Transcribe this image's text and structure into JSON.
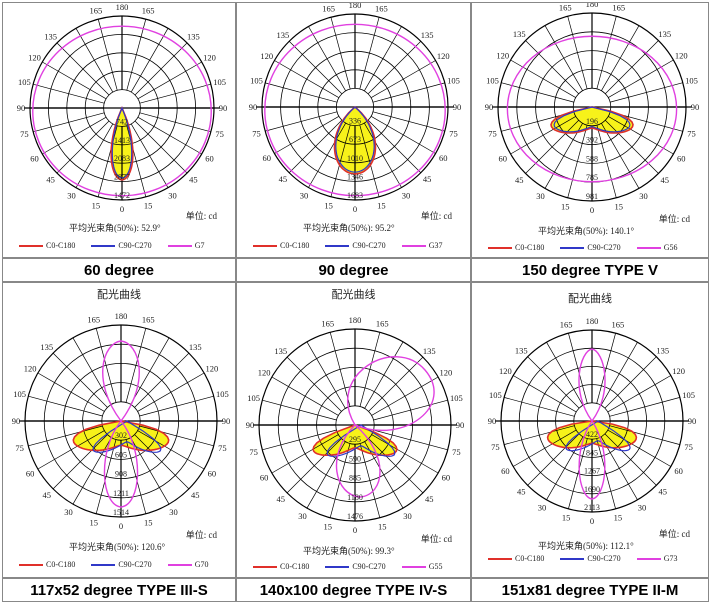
{
  "colors": {
    "c0": "#e0302a",
    "c90": "#3038c8",
    "g": "#e040e0",
    "fill": "#f7f21a",
    "grid": "#000000"
  },
  "unit_label": "单位: cd",
  "panels": [
    {
      "caption": "60 degree",
      "title": "",
      "beam_label": "平均光束角(50%): 52.9°",
      "legend": [
        "C0-C180",
        "C90-C270",
        "G7"
      ],
      "chart_data": {
        "type": "polar",
        "angle_labels_left": [
          "180",
          "165",
          "135",
          "120",
          "105",
          "90",
          "75",
          "60",
          "45",
          "30",
          "15",
          "0"
        ],
        "angle_labels_right": [
          "165",
          "135",
          "120",
          "105",
          "90",
          "75",
          "60",
          "45",
          "30",
          "15"
        ],
        "radial_labels": [
          "742",
          "1413",
          "2083",
          "2877",
          "1472"
        ],
        "series": [
          {
            "name": "C0-C180",
            "peak_deg": 0,
            "spread_deg": 26
          },
          {
            "name": "C90-C270",
            "peak_deg": 0,
            "spread_deg": 26
          },
          {
            "name": "G7",
            "shape": "circle"
          }
        ]
      }
    },
    {
      "caption": "90 degree",
      "title": "",
      "beam_label": "平均光束角(50%): 95.2°",
      "legend": [
        "C0-C180",
        "C90-C270",
        "G37"
      ],
      "chart_data": {
        "type": "polar",
        "angle_labels_left": [
          "180",
          "165",
          "135",
          "120",
          "105",
          "90",
          "75",
          "60",
          "45",
          "30",
          "15",
          "0"
        ],
        "angle_labels_right": [
          "165",
          "135",
          "120",
          "105",
          "90",
          "75",
          "60",
          "45",
          "30",
          "15"
        ],
        "radial_labels": [
          "336",
          "673",
          "1010",
          "1346",
          "1683"
        ],
        "series": [
          {
            "name": "C0-C180",
            "peak_deg": 0,
            "spread_deg": 48
          },
          {
            "name": "C90-C270",
            "peak_deg": 0,
            "spread_deg": 48
          },
          {
            "name": "G37",
            "shape": "circle"
          }
        ]
      }
    },
    {
      "caption": "150 degree TYPE V",
      "title": "",
      "beam_label": "平均光束角(50%): 140.1°",
      "legend": [
        "C0-C180",
        "C90-C270",
        "G56"
      ],
      "chart_data": {
        "type": "polar",
        "angle_labels_left": [
          "180",
          "165",
          "135",
          "120",
          "105",
          "90",
          "75",
          "60",
          "45",
          "30",
          "15",
          "0"
        ],
        "angle_labels_right": [
          "165",
          "135",
          "120",
          "105",
          "90",
          "75",
          "60",
          "45",
          "30",
          "15"
        ],
        "radial_labels": [
          "196",
          "392",
          "588",
          "785",
          "981"
        ],
        "series": [
          {
            "name": "C0-C180",
            "peak_deg": 70,
            "spread_deg": 70
          },
          {
            "name": "C90-C270",
            "peak_deg": 70,
            "spread_deg": 70
          },
          {
            "name": "G56",
            "shape": "circle"
          }
        ]
      }
    },
    {
      "caption": "117x52 degree TYPE III-S",
      "title": "配光曲线",
      "beam_label": "平均光束角(50%): 120.6°",
      "legend": [
        "C0-C180",
        "C90-C270",
        "G70"
      ],
      "chart_data": {
        "type": "polar",
        "angle_labels_left": [
          "180",
          "165",
          "135",
          "120",
          "105",
          "90",
          "75",
          "60",
          "45",
          "30",
          "15",
          "0"
        ],
        "angle_labels_right": [
          "165",
          "135",
          "120",
          "105",
          "90",
          "75",
          "60",
          "45",
          "30",
          "15"
        ],
        "radial_labels": [
          "302",
          "605",
          "908",
          "1211",
          "1514"
        ],
        "series": [
          {
            "name": "C0-C180",
            "peak_deg": 75,
            "spread_deg": 78
          },
          {
            "name": "C90-C270",
            "peak_deg": 75,
            "spread_deg": 78
          },
          {
            "name": "G70",
            "shape": "lobes"
          }
        ]
      }
    },
    {
      "caption": "140x100 degree TYPE IV-S",
      "title": "配光曲线",
      "beam_label": "平均光束角(50%): 99.3°",
      "legend": [
        "C0-C180",
        "C90-C270",
        "G55"
      ],
      "chart_data": {
        "type": "polar",
        "angle_labels_left": [
          "180",
          "165",
          "135",
          "120",
          "105",
          "90",
          "75",
          "60",
          "45",
          "30",
          "15",
          "0"
        ],
        "angle_labels_right": [
          "165",
          "135",
          "120",
          "105",
          "90",
          "75",
          "60",
          "45",
          "30",
          "15"
        ],
        "radial_labels": [
          "295",
          "590",
          "885",
          "1180",
          "1476"
        ],
        "series": [
          {
            "name": "C0-C180",
            "peak_deg": 60,
            "spread_deg": 70
          },
          {
            "name": "C90-C270",
            "peak_deg": 60,
            "spread_deg": 70
          },
          {
            "name": "G55",
            "shape": "lobes"
          }
        ]
      }
    },
    {
      "caption": "151x81 degree TYPE II-M",
      "title": "配光曲线",
      "beam_label": "平均光束角(50%): 112.1°",
      "legend": [
        "C0-C180",
        "C90-C270",
        "G73"
      ],
      "chart_data": {
        "type": "polar",
        "angle_labels_left": [
          "180",
          "165",
          "135",
          "120",
          "105",
          "90",
          "75",
          "60",
          "45",
          "30",
          "15",
          "0"
        ],
        "angle_labels_right": [
          "165",
          "135",
          "120",
          "105",
          "90",
          "75",
          "60",
          "45",
          "30",
          "15"
        ],
        "radial_labels": [
          "422",
          "845",
          "1267",
          "1690",
          "2113"
        ],
        "series": [
          {
            "name": "C0-C180",
            "peak_deg": 78,
            "spread_deg": 80
          },
          {
            "name": "C90-C270",
            "peak_deg": 78,
            "spread_deg": 80
          },
          {
            "name": "G73",
            "shape": "lobes"
          }
        ]
      }
    }
  ]
}
